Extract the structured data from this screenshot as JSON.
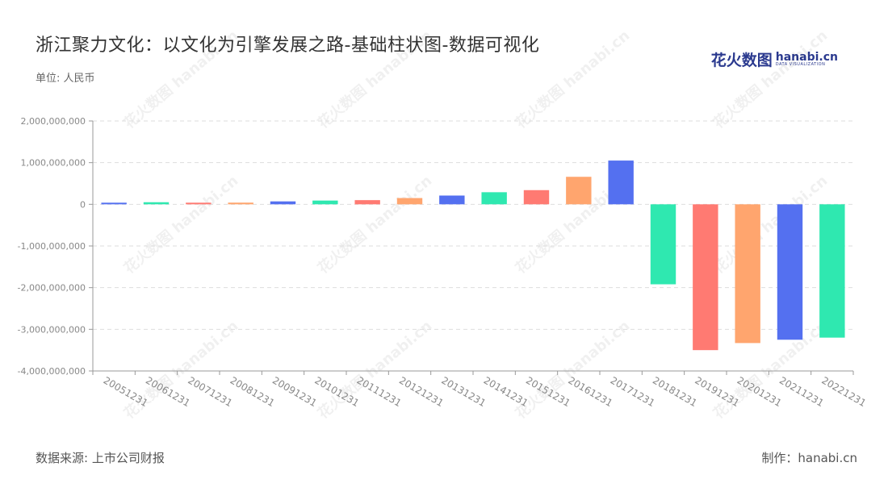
{
  "header": {
    "title": "浙江聚力文化：以文化为引擎发展之路-基础柱状图-数据可视化",
    "unit": "单位: 人民币"
  },
  "brand": {
    "logo_cn": "花火数图",
    "logo_en": "hanabi.cn",
    "logo_tagline": "DATA VISUALIZATION"
  },
  "footer": {
    "source": "数据来源: 上市公司财报",
    "credit": "制作：hanabi.cn"
  },
  "watermark_text": "花火数图 hanabi.cn",
  "colors": {
    "blue": "#5470f0",
    "green": "#2fe8b0",
    "red": "#ff7a72",
    "orange": "#ffa56e",
    "grid": "#dddddd",
    "axis": "#999999",
    "tick_text": "#888888"
  },
  "chart_data": {
    "type": "bar",
    "title": "浙江聚力文化：以文化为引擎发展之路-基础柱状图-数据可视化",
    "ylabel": "",
    "xlabel": "",
    "ylim": [
      -4000000000,
      2000000000
    ],
    "yticks": [
      2000000000,
      1000000000,
      0,
      -1000000000,
      -2000000000,
      -3000000000,
      -4000000000
    ],
    "ytick_labels": [
      "2,000,000,000",
      "1,000,000,000",
      "0",
      "-1,000,000,000",
      "-2,000,000,000",
      "-3,000,000,000",
      "-4,000,000,000"
    ],
    "grid": true,
    "categories": [
      "20051231",
      "20061231",
      "20071231",
      "20081231",
      "20091231",
      "20101231",
      "20111231",
      "20121231",
      "20131231",
      "20141231",
      "20151231",
      "20161231",
      "20171231",
      "20181231",
      "20191231",
      "20201231",
      "20211231",
      "20221231"
    ],
    "values": [
      30000000,
      50000000,
      20000000,
      40000000,
      70000000,
      90000000,
      100000000,
      150000000,
      210000000,
      290000000,
      340000000,
      660000000,
      1050000000,
      -1920000000,
      -3500000000,
      -3330000000,
      -3250000000,
      -3200000000
    ],
    "bar_colors": [
      "#5470f0",
      "#2fe8b0",
      "#ff7a72",
      "#ffa56e",
      "#5470f0",
      "#2fe8b0",
      "#ff7a72",
      "#ffa56e",
      "#5470f0",
      "#2fe8b0",
      "#ff7a72",
      "#ffa56e",
      "#5470f0",
      "#2fe8b0",
      "#ff7a72",
      "#ffa56e",
      "#5470f0",
      "#2fe8b0"
    ]
  }
}
